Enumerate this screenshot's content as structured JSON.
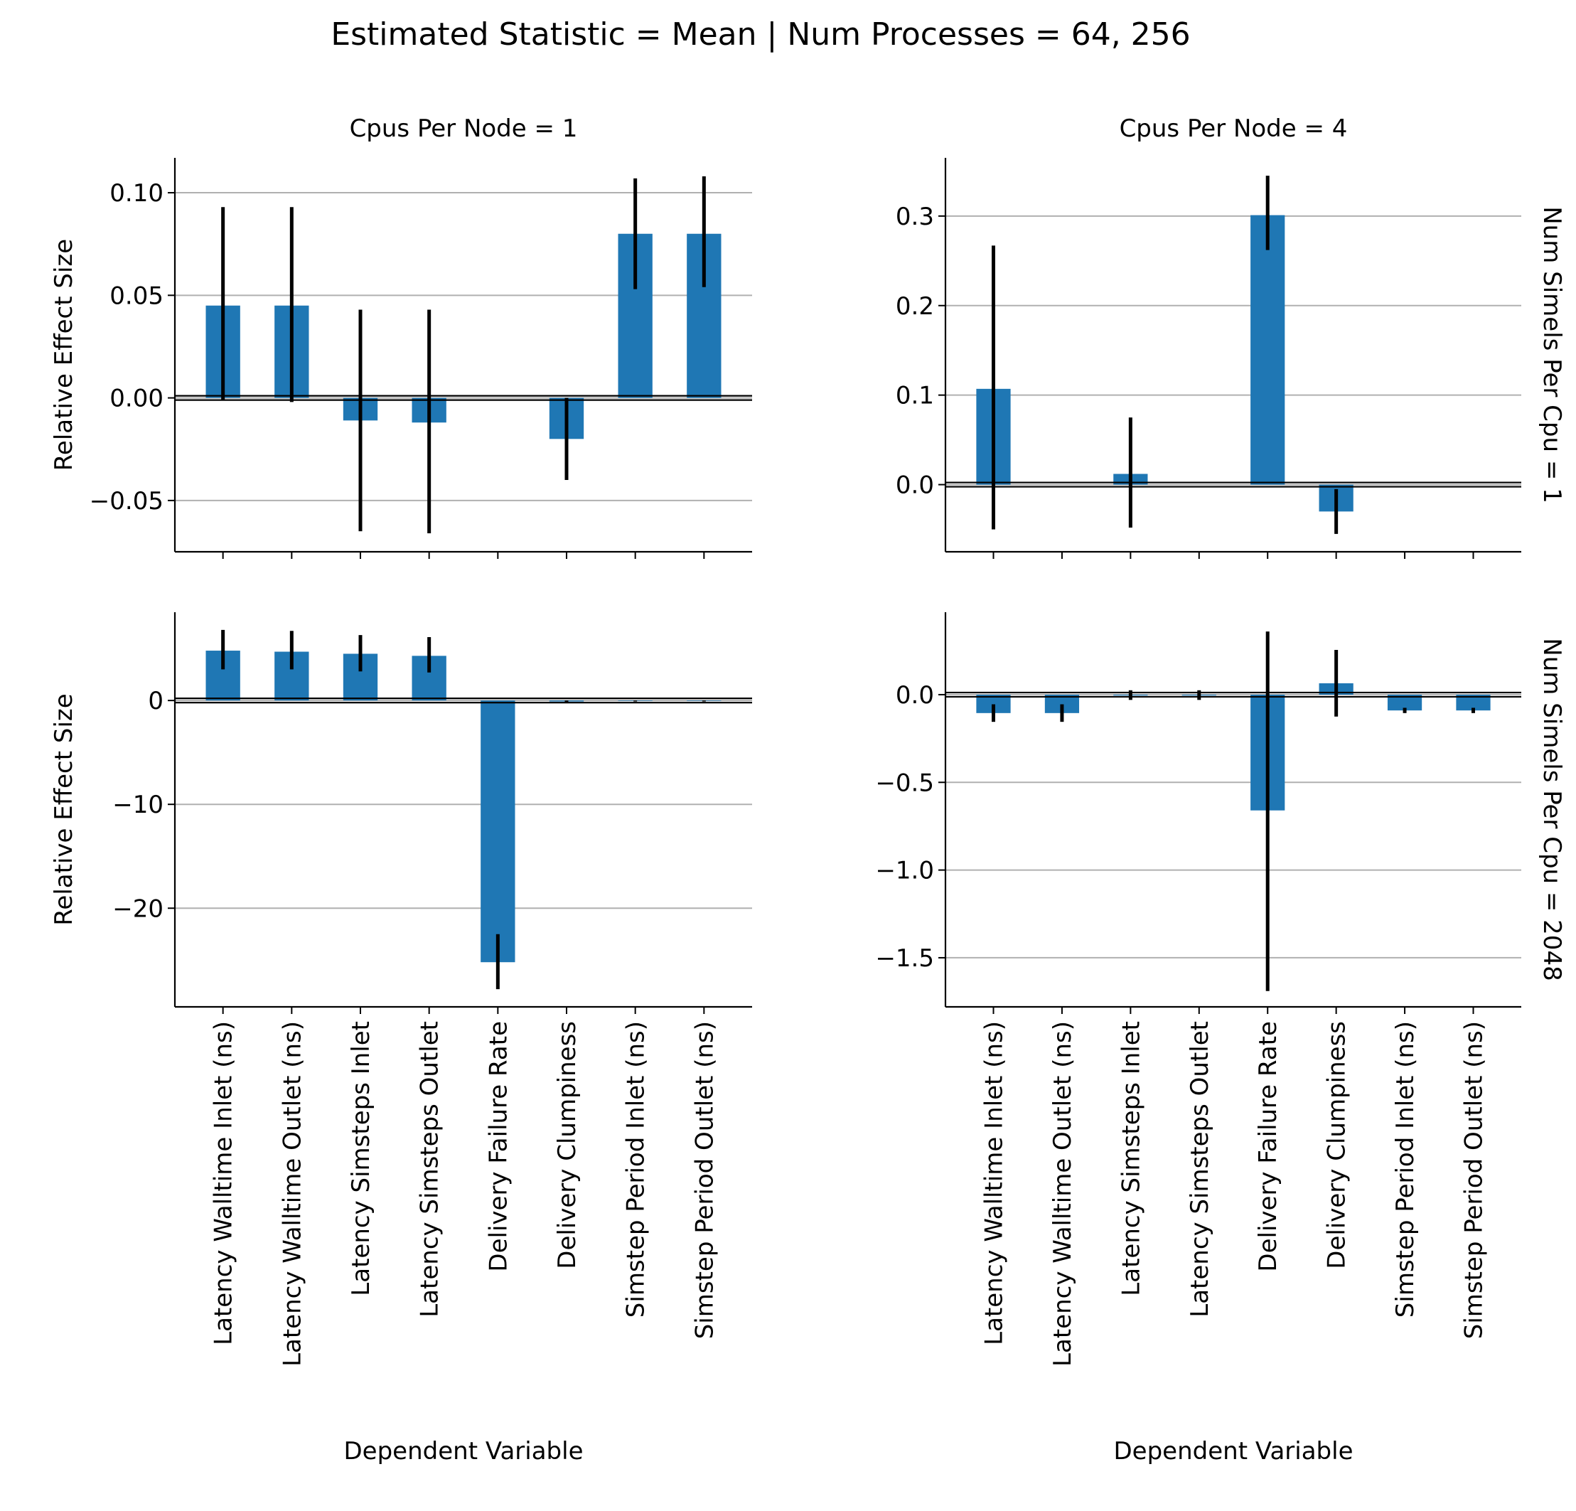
{
  "figure": {
    "suptitle": "Estimated Statistic = Mean | Num Processes = 64, 256"
  },
  "colors": {
    "bar": "#1f77b4",
    "errorbar": "#000000",
    "grid": "#b0b0b0",
    "zero_line": "#000000"
  },
  "chart_data": [
    {
      "type": "bar",
      "panel": "row1-col1",
      "col_title": "Cpus Per Node = 1",
      "row_title": "",
      "ylabel": "Relative Effect Size",
      "xlabel": "",
      "categories": [
        "Latency Walltime Inlet (ns)",
        "Latency Walltime Outlet (ns)",
        "Latency Simsteps Inlet",
        "Latency Simsteps Outlet",
        "Delivery Failure Rate",
        "Delivery Clumpiness",
        "Simstep Period Inlet (ns)",
        "Simstep Period Outlet (ns)"
      ],
      "values": [
        0.045,
        0.045,
        -0.011,
        -0.012,
        null,
        -0.02,
        0.08,
        0.08
      ],
      "error_low": [
        -0.001,
        -0.002,
        -0.065,
        -0.066,
        null,
        -0.04,
        0.053,
        0.054
      ],
      "error_high": [
        0.093,
        0.093,
        0.043,
        0.043,
        null,
        0.0,
        0.107,
        0.108
      ],
      "ylim": [
        -0.075,
        0.117
      ],
      "yticks": [
        -0.05,
        0.0,
        0.05,
        0.1
      ],
      "ytick_labels": [
        "−0.05",
        "0.00",
        "0.05",
        "0.10"
      ],
      "grid": "y"
    },
    {
      "type": "bar",
      "panel": "row1-col2",
      "col_title": "Cpus Per Node = 4",
      "row_title": "Num Simels Per Cpu = 1",
      "ylabel": "",
      "xlabel": "",
      "categories": [
        "Latency Walltime Inlet (ns)",
        "Latency Walltime Outlet (ns)",
        "Latency Simsteps Inlet",
        "Latency Simsteps Outlet",
        "Delivery Failure Rate",
        "Delivery Clumpiness",
        "Simstep Period Inlet (ns)",
        "Simstep Period Outlet (ns)"
      ],
      "values": [
        0.107,
        null,
        0.012,
        null,
        0.301,
        -0.03,
        null,
        null
      ],
      "error_low": [
        -0.05,
        null,
        -0.048,
        null,
        0.262,
        -0.055,
        null,
        null
      ],
      "error_high": [
        0.267,
        null,
        0.075,
        null,
        0.345,
        -0.005,
        null,
        null
      ],
      "ylim": [
        -0.075,
        0.365
      ],
      "yticks": [
        0.0,
        0.1,
        0.2,
        0.3
      ],
      "ytick_labels": [
        "0.0",
        "0.1",
        "0.2",
        "0.3"
      ],
      "grid": "y"
    },
    {
      "type": "bar",
      "panel": "row2-col1",
      "col_title": "",
      "row_title": "",
      "ylabel": "Relative Effect Size",
      "xlabel": "Dependent Variable",
      "categories": [
        "Latency Walltime Inlet (ns)",
        "Latency Walltime Outlet (ns)",
        "Latency Simsteps Inlet",
        "Latency Simsteps Outlet",
        "Delivery Failure Rate",
        "Delivery Clumpiness",
        "Simstep Period Inlet (ns)",
        "Simstep Period Outlet (ns)"
      ],
      "values": [
        4.8,
        4.7,
        4.5,
        4.3,
        -25.2,
        -0.1,
        -0.05,
        -0.05
      ],
      "error_low": [
        3.0,
        3.0,
        2.8,
        2.7,
        -27.8,
        -0.2,
        -0.1,
        -0.1
      ],
      "error_high": [
        6.8,
        6.7,
        6.3,
        6.1,
        -22.5,
        0.0,
        0.0,
        0.0
      ],
      "ylim": [
        -29.5,
        8.5
      ],
      "yticks": [
        -20,
        -10,
        0
      ],
      "ytick_labels": [
        "−20",
        "−10",
        "0"
      ],
      "grid": "y"
    },
    {
      "type": "bar",
      "panel": "row2-col2",
      "col_title": "",
      "row_title": "Num Simels Per Cpu = 2048",
      "ylabel": "",
      "xlabel": "Dependent Variable",
      "categories": [
        "Latency Walltime Inlet (ns)",
        "Latency Walltime Outlet (ns)",
        "Latency Simsteps Inlet",
        "Latency Simsteps Outlet",
        "Delivery Failure Rate",
        "Delivery Clumpiness",
        "Simstep Period Inlet (ns)",
        "Simstep Period Outlet (ns)"
      ],
      "values": [
        -0.105,
        -0.105,
        -0.005,
        -0.005,
        -0.66,
        0.065,
        -0.09,
        -0.09
      ],
      "error_low": [
        -0.155,
        -0.155,
        -0.03,
        -0.03,
        -1.69,
        -0.125,
        -0.105,
        -0.105
      ],
      "error_high": [
        -0.055,
        -0.055,
        0.025,
        0.025,
        0.36,
        0.255,
        -0.075,
        -0.075
      ],
      "ylim": [
        -1.78,
        0.47
      ],
      "yticks": [
        -1.5,
        -1.0,
        -0.5,
        0.0
      ],
      "ytick_labels": [
        "−1.5",
        "−1.0",
        "−0.5",
        "0.0"
      ],
      "grid": "y"
    }
  ]
}
